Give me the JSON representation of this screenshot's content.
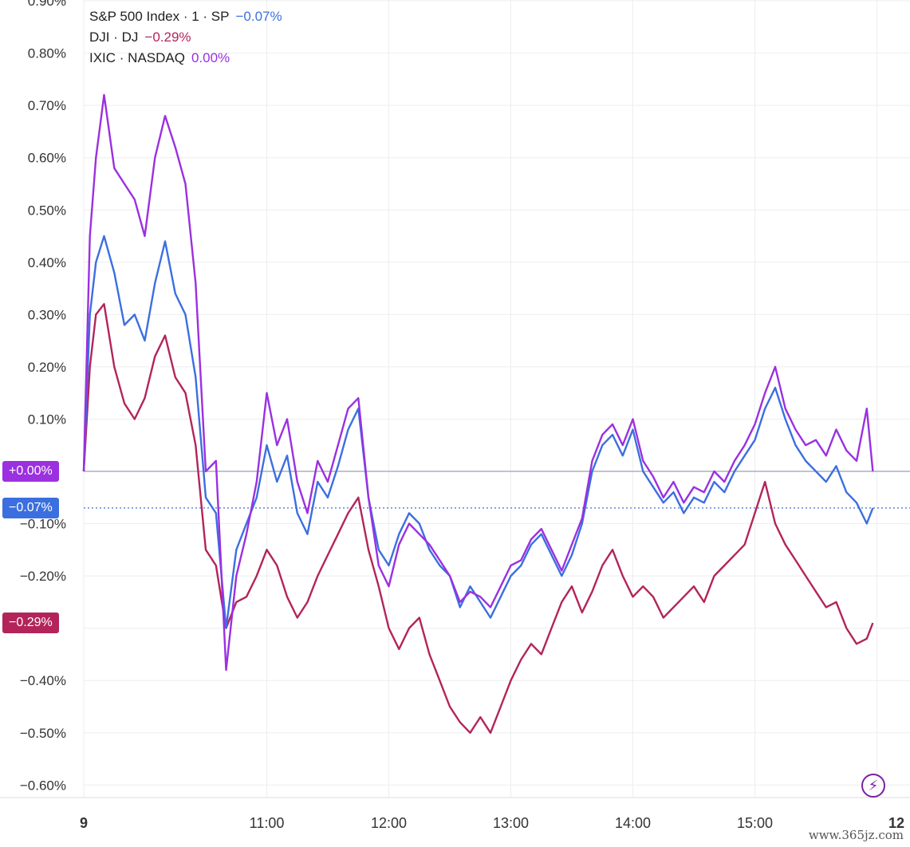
{
  "chart_data": {
    "type": "line",
    "y_unit": "%",
    "ylim": [
      -0.62,
      0.9
    ],
    "y_ticks": [
      0.9,
      0.8,
      0.7,
      0.6,
      0.5,
      0.4,
      0.3,
      0.2,
      0.1,
      0.0,
      -0.1,
      -0.2,
      -0.3,
      -0.4,
      -0.5,
      -0.6
    ],
    "y_tick_labels": [
      "0.90%",
      "0.80%",
      "0.70%",
      "0.60%",
      "0.50%",
      "0.40%",
      "0.30%",
      "0.20%",
      "0.10%",
      "",
      "−0.10%",
      "−0.20%",
      "",
      "−0.40%",
      "−0.50%",
      "−0.60%"
    ],
    "x_ticks": [
      "09:30",
      "11:00",
      "12:00",
      "13:00",
      "14:00",
      "15:00",
      "16:00"
    ],
    "x_tick_labels": [
      "9",
      "11:00",
      "12:00",
      "13:00",
      "14:00",
      "15:00",
      "12"
    ],
    "x": [
      "09:30",
      "09:33",
      "09:36",
      "09:40",
      "09:45",
      "09:50",
      "09:55",
      "10:00",
      "10:05",
      "10:10",
      "10:15",
      "10:20",
      "10:25",
      "10:30",
      "10:35",
      "10:40",
      "10:45",
      "10:50",
      "10:55",
      "11:00",
      "11:05",
      "11:10",
      "11:15",
      "11:20",
      "11:25",
      "11:30",
      "11:35",
      "11:40",
      "11:45",
      "11:50",
      "11:55",
      "12:00",
      "12:05",
      "12:10",
      "12:15",
      "12:20",
      "12:25",
      "12:30",
      "12:35",
      "12:40",
      "12:45",
      "12:50",
      "12:55",
      "13:00",
      "13:05",
      "13:10",
      "13:15",
      "13:20",
      "13:25",
      "13:30",
      "13:35",
      "13:40",
      "13:45",
      "13:50",
      "13:55",
      "14:00",
      "14:05",
      "14:10",
      "14:15",
      "14:20",
      "14:25",
      "14:30",
      "14:35",
      "14:40",
      "14:45",
      "14:50",
      "14:55",
      "15:00",
      "15:05",
      "15:10",
      "15:15",
      "15:20",
      "15:25",
      "15:30",
      "15:35",
      "15:40",
      "15:45",
      "15:50",
      "15:55",
      "15:58"
    ],
    "series": [
      {
        "name": "S&P 500 Index · 1 · SP",
        "change": "−0.07%",
        "color": "#3b6fe0",
        "values": [
          0.0,
          0.3,
          0.4,
          0.45,
          0.38,
          0.28,
          0.3,
          0.25,
          0.36,
          0.44,
          0.34,
          0.3,
          0.18,
          -0.05,
          -0.08,
          -0.3,
          -0.15,
          -0.1,
          -0.05,
          0.05,
          -0.02,
          0.03,
          -0.08,
          -0.12,
          -0.02,
          -0.05,
          0.01,
          0.08,
          0.12,
          -0.05,
          -0.15,
          -0.18,
          -0.12,
          -0.08,
          -0.1,
          -0.15,
          -0.18,
          -0.2,
          -0.26,
          -0.22,
          -0.25,
          -0.28,
          -0.24,
          -0.2,
          -0.18,
          -0.14,
          -0.12,
          -0.16,
          -0.2,
          -0.16,
          -0.1,
          0.0,
          0.05,
          0.07,
          0.03,
          0.08,
          0.0,
          -0.03,
          -0.06,
          -0.04,
          -0.08,
          -0.05,
          -0.06,
          -0.02,
          -0.04,
          0.0,
          0.03,
          0.06,
          0.12,
          0.16,
          0.1,
          0.05,
          0.02,
          0.0,
          -0.02,
          0.01,
          -0.04,
          -0.06,
          -0.1,
          -0.07
        ]
      },
      {
        "name": "DJI · DJ",
        "change": "−0.29%",
        "color": "#b3245a",
        "values": [
          0.0,
          0.2,
          0.3,
          0.32,
          0.2,
          0.13,
          0.1,
          0.14,
          0.22,
          0.26,
          0.18,
          0.15,
          0.05,
          -0.15,
          -0.18,
          -0.3,
          -0.25,
          -0.24,
          -0.2,
          -0.15,
          -0.18,
          -0.24,
          -0.28,
          -0.25,
          -0.2,
          -0.16,
          -0.12,
          -0.08,
          -0.05,
          -0.15,
          -0.22,
          -0.3,
          -0.34,
          -0.3,
          -0.28,
          -0.35,
          -0.4,
          -0.45,
          -0.48,
          -0.5,
          -0.47,
          -0.5,
          -0.45,
          -0.4,
          -0.36,
          -0.33,
          -0.35,
          -0.3,
          -0.25,
          -0.22,
          -0.27,
          -0.23,
          -0.18,
          -0.15,
          -0.2,
          -0.24,
          -0.22,
          -0.24,
          -0.28,
          -0.26,
          -0.24,
          -0.22,
          -0.25,
          -0.2,
          -0.18,
          -0.16,
          -0.14,
          -0.08,
          -0.02,
          -0.1,
          -0.14,
          -0.17,
          -0.2,
          -0.23,
          -0.26,
          -0.25,
          -0.3,
          -0.33,
          -0.32,
          -0.29
        ]
      },
      {
        "name": "IXIC · NASDAQ",
        "change": "0.00%",
        "color": "#9b30e0",
        "values": [
          0.0,
          0.45,
          0.6,
          0.72,
          0.58,
          0.55,
          0.52,
          0.45,
          0.6,
          0.68,
          0.62,
          0.55,
          0.36,
          0.0,
          0.02,
          -0.38,
          -0.2,
          -0.12,
          -0.02,
          0.15,
          0.05,
          0.1,
          -0.02,
          -0.08,
          0.02,
          -0.02,
          0.05,
          0.12,
          0.14,
          -0.05,
          -0.18,
          -0.22,
          -0.14,
          -0.1,
          -0.12,
          -0.14,
          -0.17,
          -0.2,
          -0.25,
          -0.23,
          -0.24,
          -0.26,
          -0.22,
          -0.18,
          -0.17,
          -0.13,
          -0.11,
          -0.15,
          -0.19,
          -0.14,
          -0.09,
          0.02,
          0.07,
          0.09,
          0.05,
          0.1,
          0.02,
          -0.01,
          -0.05,
          -0.02,
          -0.06,
          -0.03,
          -0.04,
          0.0,
          -0.02,
          0.02,
          0.05,
          0.09,
          0.15,
          0.2,
          0.12,
          0.08,
          0.05,
          0.06,
          0.03,
          0.08,
          0.04,
          0.02,
          0.12,
          0.0
        ]
      }
    ],
    "reference_lines": [
      {
        "value": 0.0,
        "label": "+0.00%",
        "color": "#9b30e0",
        "style": "solid"
      },
      {
        "value": -0.07,
        "label": "−0.07%",
        "color": "#3b6fe0",
        "style": "dotted"
      },
      {
        "value": -0.29,
        "label": "−0.29%",
        "color": "#b3245a",
        "style": "none"
      }
    ],
    "grid": true
  },
  "watermark": "www.365jz.com",
  "icon": "lightning-bolt-icon"
}
